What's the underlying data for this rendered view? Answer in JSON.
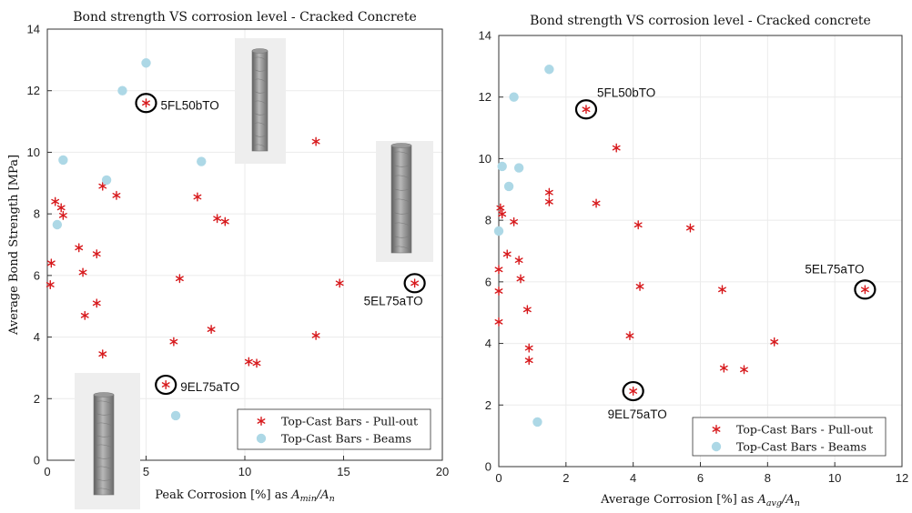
{
  "chart_data": [
    {
      "type": "scatter",
      "title": "Bond strength VS corrosion level - Cracked Concrete",
      "ylabel": "Average Bond Strength [MPa]",
      "xlabel": "Peak Corrosion [%] as A_min/A_n",
      "xlabel_text": "Peak Corrosion [%] as ",
      "xlabel_math": [
        "A",
        "min",
        "/A",
        "n"
      ],
      "xlim": [
        0,
        20
      ],
      "ylim": [
        0,
        14
      ],
      "xticks": [
        "0",
        "5",
        "10",
        "15",
        "20"
      ],
      "yticks": [
        "0",
        "2",
        "4",
        "6",
        "8",
        "10",
        "12",
        "14"
      ],
      "grid": true,
      "legend_position": "bottom-right",
      "series": [
        {
          "name": "Top-Cast Bars - Pull-out",
          "marker": "asterisk",
          "color": "#d7191c",
          "points": [
            [
              0.4,
              8.4
            ],
            [
              0.7,
              8.2
            ],
            [
              0.8,
              7.95
            ],
            [
              0.2,
              6.4
            ],
            [
              0.15,
              5.7
            ],
            [
              1.6,
              6.9
            ],
            [
              1.8,
              6.1
            ],
            [
              1.9,
              4.7
            ],
            [
              2.5,
              6.7
            ],
            [
              2.5,
              5.1
            ],
            [
              2.8,
              8.9
            ],
            [
              2.8,
              3.45
            ],
            [
              3.5,
              8.6
            ],
            [
              5.0,
              11.6
            ],
            [
              6.0,
              2.45
            ],
            [
              6.4,
              3.85
            ],
            [
              6.7,
              5.9
            ],
            [
              7.6,
              8.55
            ],
            [
              8.3,
              4.25
            ],
            [
              8.6,
              7.85
            ],
            [
              9.0,
              7.75
            ],
            [
              10.2,
              3.2
            ],
            [
              10.6,
              3.15
            ],
            [
              13.6,
              10.35
            ],
            [
              13.6,
              4.05
            ],
            [
              14.8,
              5.75
            ],
            [
              18.6,
              5.75
            ]
          ]
        },
        {
          "name": "Top-Cast Bars - Beams",
          "marker": "circle",
          "color": "#add8e6",
          "points": [
            [
              5.0,
              12.9
            ],
            [
              3.8,
              12.0
            ],
            [
              0.8,
              9.75
            ],
            [
              3.0,
              9.1
            ],
            [
              0.5,
              7.65
            ],
            [
              7.8,
              9.7
            ],
            [
              6.5,
              1.45
            ]
          ]
        }
      ],
      "annotations": [
        {
          "text": "5FL50bTO",
          "x": 5.0,
          "y": 11.6
        },
        {
          "text": "9EL75aTO",
          "x": 6.0,
          "y": 2.45
        },
        {
          "text": "5EL75aTO",
          "x": 18.6,
          "y": 5.75
        }
      ]
    },
    {
      "type": "scatter",
      "title": "Bond strength VS corrosion level - Cracked concrete",
      "ylabel": "",
      "xlabel": "Average Corrosion [%] as A_avg/A_n",
      "xlabel_text": "Average Corrosion [%] as ",
      "xlabel_math": [
        "A",
        "avg",
        "/A",
        "n"
      ],
      "xlim": [
        0,
        12
      ],
      "ylim": [
        0,
        14
      ],
      "xticks": [
        "0",
        "2",
        "4",
        "6",
        "8",
        "10",
        "12"
      ],
      "yticks": [
        "0",
        "2",
        "4",
        "6",
        "8",
        "10",
        "12",
        "14"
      ],
      "grid": true,
      "legend_position": "bottom-right",
      "series": [
        {
          "name": "Top-Cast Bars - Pull-out",
          "marker": "asterisk",
          "color": "#d7191c",
          "points": [
            [
              0.05,
              8.4
            ],
            [
              0.1,
              8.2
            ],
            [
              0.45,
              7.95
            ],
            [
              0.0,
              6.4
            ],
            [
              0.0,
              5.7
            ],
            [
              0.25,
              6.9
            ],
            [
              0.6,
              6.7
            ],
            [
              0.65,
              6.1
            ],
            [
              0.0,
              4.7
            ],
            [
              0.85,
              5.1
            ],
            [
              0.9,
              3.85
            ],
            [
              0.9,
              3.45
            ],
            [
              1.5,
              8.9
            ],
            [
              1.5,
              8.6
            ],
            [
              2.6,
              11.6
            ],
            [
              2.9,
              8.55
            ],
            [
              3.5,
              10.35
            ],
            [
              4.0,
              2.45
            ],
            [
              3.9,
              4.25
            ],
            [
              4.15,
              7.85
            ],
            [
              4.2,
              5.85
            ],
            [
              5.7,
              7.75
            ],
            [
              6.65,
              5.75
            ],
            [
              6.7,
              3.2
            ],
            [
              7.3,
              3.15
            ],
            [
              8.2,
              4.05
            ],
            [
              10.9,
              5.75
            ]
          ]
        },
        {
          "name": "Top-Cast Bars - Beams",
          "marker": "circle",
          "color": "#add8e6",
          "points": [
            [
              1.5,
              12.9
            ],
            [
              0.45,
              12.0
            ],
            [
              0.1,
              9.75
            ],
            [
              0.6,
              9.7
            ],
            [
              0.3,
              9.1
            ],
            [
              0.0,
              7.65
            ],
            [
              1.15,
              1.45
            ]
          ]
        }
      ],
      "annotations": [
        {
          "text": "5FL50bTO",
          "x": 2.6,
          "y": 11.6
        },
        {
          "text": "9EL75aTO",
          "x": 4.0,
          "y": 2.45
        },
        {
          "text": "5EL75aTO",
          "x": 10.9,
          "y": 5.75
        }
      ]
    }
  ]
}
